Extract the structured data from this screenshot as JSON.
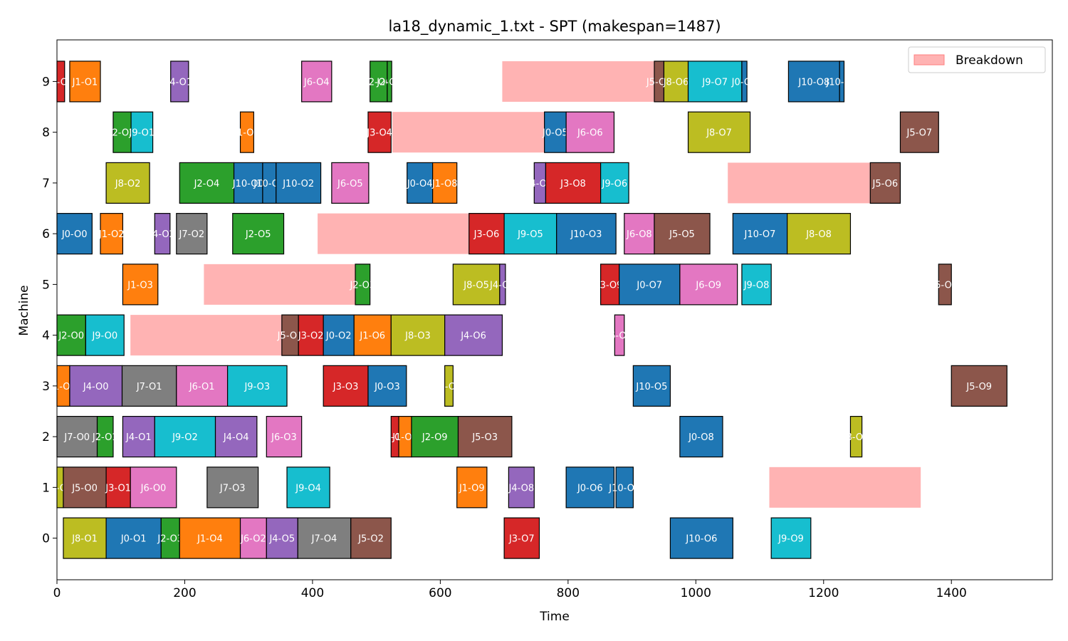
{
  "chart_data": {
    "type": "gantt",
    "title": "la18_dynamic_1.txt - SPT (makespan=1487)",
    "xlabel": "Time",
    "ylabel": "Machine",
    "xlim": [
      0,
      1558
    ],
    "xticks": [
      0,
      200,
      400,
      600,
      800,
      1000,
      1200,
      1400
    ],
    "ylim": [
      -0.82,
      9.82
    ],
    "yticks": [
      0,
      1,
      2,
      3,
      4,
      5,
      6,
      7,
      8,
      9
    ],
    "grid": false,
    "legend": {
      "position": "upper right",
      "entries": [
        {
          "label": "Breakdown",
          "color": "#ffb3b3"
        }
      ]
    },
    "job_colors": {
      "J0": "#1f77b4",
      "J1": "#ff7f0e",
      "J2": "#2ca02c",
      "J3": "#d62728",
      "J4": "#9467bd",
      "J5": "#8c564b",
      "J6": "#e377c2",
      "J7": "#7f7f7f",
      "J8": "#bcbd22",
      "J9": "#17becf",
      "J10": "#1f77b4"
    },
    "breakdowns": [
      {
        "machine": 9,
        "start": 697,
        "end": 935
      },
      {
        "machine": 8,
        "start": 525,
        "end": 763
      },
      {
        "machine": 7,
        "start": 1050,
        "end": 1273
      },
      {
        "machine": 6,
        "start": 408,
        "end": 645
      },
      {
        "machine": 5,
        "start": 230,
        "end": 467
      },
      {
        "machine": 4,
        "start": 115,
        "end": 352
      },
      {
        "machine": 1,
        "start": 1115,
        "end": 1352
      }
    ],
    "operations": [
      {
        "machine": 9,
        "job": "J3",
        "label": "J3-O0",
        "start": 0,
        "end": 12
      },
      {
        "machine": 9,
        "job": "J1",
        "label": "J1-O1",
        "start": 20,
        "end": 68
      },
      {
        "machine": 9,
        "job": "J4",
        "label": "J4-O1",
        "start": 178,
        "end": 206
      },
      {
        "machine": 9,
        "job": "J6",
        "label": "J6-O4",
        "start": 383,
        "end": 430
      },
      {
        "machine": 9,
        "job": "J2",
        "label": "J2-O6",
        "start": 490,
        "end": 517
      },
      {
        "machine": 9,
        "job": "J2",
        "label": "J2-O7",
        "start": 517,
        "end": 524
      },
      {
        "machine": 9,
        "job": "J5",
        "label": "J5-O8",
        "start": 935,
        "end": 950
      },
      {
        "machine": 9,
        "job": "J8",
        "label": "J8-O6",
        "start": 950,
        "end": 988
      },
      {
        "machine": 9,
        "job": "J9",
        "label": "J9-O7",
        "start": 988,
        "end": 1072
      },
      {
        "machine": 9,
        "job": "J0",
        "label": "J0-O9",
        "start": 1072,
        "end": 1080
      },
      {
        "machine": 9,
        "job": "J10",
        "label": "J10-O8",
        "start": 1145,
        "end": 1225
      },
      {
        "machine": 9,
        "job": "J10",
        "label": "J10-O9",
        "start": 1225,
        "end": 1232
      },
      {
        "machine": 8,
        "job": "J2",
        "label": "J2-O2",
        "start": 88,
        "end": 116
      },
      {
        "machine": 8,
        "job": "J9",
        "label": "J9-O1",
        "start": 116,
        "end": 150
      },
      {
        "machine": 8,
        "job": "J1",
        "label": "J1-O5",
        "start": 287,
        "end": 308
      },
      {
        "machine": 8,
        "job": "J3",
        "label": "J3-O4",
        "start": 487,
        "end": 523
      },
      {
        "machine": 8,
        "job": "J0",
        "label": "J0-O5",
        "start": 763,
        "end": 797
      },
      {
        "machine": 8,
        "job": "J6",
        "label": "J6-O6",
        "start": 797,
        "end": 872
      },
      {
        "machine": 8,
        "job": "J8",
        "label": "J8-O7",
        "start": 988,
        "end": 1085
      },
      {
        "machine": 8,
        "job": "J5",
        "label": "J5-O7",
        "start": 1320,
        "end": 1380
      },
      {
        "machine": 7,
        "job": "J8",
        "label": "J8-O2",
        "start": 77,
        "end": 145
      },
      {
        "machine": 7,
        "job": "J2",
        "label": "J2-O4",
        "start": 192,
        "end": 277
      },
      {
        "machine": 7,
        "job": "J10",
        "label": "J10-O0",
        "start": 277,
        "end": 322
      },
      {
        "machine": 7,
        "job": "J10",
        "label": "J10-O1",
        "start": 322,
        "end": 343
      },
      {
        "machine": 7,
        "job": "J10",
        "label": "J10-O2",
        "start": 343,
        "end": 413
      },
      {
        "machine": 7,
        "job": "J6",
        "label": "J6-O5",
        "start": 430,
        "end": 488
      },
      {
        "machine": 7,
        "job": "J0",
        "label": "J0-O4",
        "start": 548,
        "end": 588
      },
      {
        "machine": 7,
        "job": "J1",
        "label": "J1-O8",
        "start": 588,
        "end": 626
      },
      {
        "machine": 7,
        "job": "J4",
        "label": "J4-O9",
        "start": 747,
        "end": 765
      },
      {
        "machine": 7,
        "job": "J3",
        "label": "J3-O8",
        "start": 765,
        "end": 851
      },
      {
        "machine": 7,
        "job": "J9",
        "label": "J9-O6",
        "start": 851,
        "end": 895
      },
      {
        "machine": 7,
        "job": "J5",
        "label": "J5-O6",
        "start": 1273,
        "end": 1320
      },
      {
        "machine": 6,
        "job": "J0",
        "label": "J0-O0",
        "start": 0,
        "end": 55
      },
      {
        "machine": 6,
        "job": "J1",
        "label": "J1-O2",
        "start": 68,
        "end": 103
      },
      {
        "machine": 6,
        "job": "J4",
        "label": "J4-O2",
        "start": 153,
        "end": 177
      },
      {
        "machine": 6,
        "job": "J7",
        "label": "J7-O2",
        "start": 187,
        "end": 235
      },
      {
        "machine": 6,
        "job": "J2",
        "label": "J2-O5",
        "start": 275,
        "end": 355
      },
      {
        "machine": 6,
        "job": "J3",
        "label": "J3-O6",
        "start": 645,
        "end": 700
      },
      {
        "machine": 6,
        "job": "J9",
        "label": "J9-O5",
        "start": 700,
        "end": 782
      },
      {
        "machine": 6,
        "job": "J10",
        "label": "J10-O3",
        "start": 782,
        "end": 875
      },
      {
        "machine": 6,
        "job": "J6",
        "label": "J6-O8",
        "start": 888,
        "end": 935
      },
      {
        "machine": 6,
        "job": "J5",
        "label": "J5-O5",
        "start": 935,
        "end": 1022
      },
      {
        "machine": 6,
        "job": "J10",
        "label": "J10-O7",
        "start": 1058,
        "end": 1143
      },
      {
        "machine": 6,
        "job": "J8",
        "label": "J8-O8",
        "start": 1143,
        "end": 1242
      },
      {
        "machine": 5,
        "job": "J1",
        "label": "J1-O3",
        "start": 103,
        "end": 158
      },
      {
        "machine": 5,
        "job": "J2",
        "label": "J2-O3",
        "start": 467,
        "end": 490
      },
      {
        "machine": 5,
        "job": "J8",
        "label": "J8-O5",
        "start": 620,
        "end": 693
      },
      {
        "machine": 5,
        "job": "J4",
        "label": "J4-O7",
        "start": 693,
        "end": 702
      },
      {
        "machine": 5,
        "job": "J3",
        "label": "J3-O9",
        "start": 851,
        "end": 880
      },
      {
        "machine": 5,
        "job": "J0",
        "label": "J0-O7",
        "start": 880,
        "end": 975
      },
      {
        "machine": 5,
        "job": "J6",
        "label": "J6-O9",
        "start": 975,
        "end": 1065
      },
      {
        "machine": 5,
        "job": "J9",
        "label": "J9-O8",
        "start": 1072,
        "end": 1118
      },
      {
        "machine": 5,
        "job": "J5",
        "label": "J5-O8",
        "start": 1380,
        "end": 1400
      },
      {
        "machine": 4,
        "job": "J2",
        "label": "J2-O0",
        "start": 0,
        "end": 45
      },
      {
        "machine": 4,
        "job": "J9",
        "label": "J9-O0",
        "start": 45,
        "end": 105
      },
      {
        "machine": 4,
        "job": "J5",
        "label": "J5-O1",
        "start": 352,
        "end": 378
      },
      {
        "machine": 4,
        "job": "J3",
        "label": "J3-O2",
        "start": 378,
        "end": 417
      },
      {
        "machine": 4,
        "job": "J0",
        "label": "J0-O2",
        "start": 417,
        "end": 465
      },
      {
        "machine": 4,
        "job": "J1",
        "label": "J1-O6",
        "start": 465,
        "end": 523
      },
      {
        "machine": 4,
        "job": "J8",
        "label": "J8-O3",
        "start": 523,
        "end": 607
      },
      {
        "machine": 4,
        "job": "J4",
        "label": "J4-O6",
        "start": 607,
        "end": 697
      },
      {
        "machine": 4,
        "job": "J6",
        "label": "J6-O7",
        "start": 873,
        "end": 888
      },
      {
        "machine": 3,
        "job": "J1",
        "label": "J1-O0",
        "start": 0,
        "end": 20
      },
      {
        "machine": 3,
        "job": "J4",
        "label": "J4-O0",
        "start": 20,
        "end": 102
      },
      {
        "machine": 3,
        "job": "J7",
        "label": "J7-O1",
        "start": 102,
        "end": 187
      },
      {
        "machine": 3,
        "job": "J6",
        "label": "J6-O1",
        "start": 187,
        "end": 267
      },
      {
        "machine": 3,
        "job": "J9",
        "label": "J9-O3",
        "start": 267,
        "end": 360
      },
      {
        "machine": 3,
        "job": "J3",
        "label": "J3-O3",
        "start": 417,
        "end": 487
      },
      {
        "machine": 3,
        "job": "J0",
        "label": "J0-O3",
        "start": 487,
        "end": 547
      },
      {
        "machine": 3,
        "job": "J8",
        "label": "J8-O4",
        "start": 607,
        "end": 620
      },
      {
        "machine": 3,
        "job": "J10",
        "label": "J10-O5",
        "start": 902,
        "end": 960
      },
      {
        "machine": 3,
        "job": "J5",
        "label": "J5-O9",
        "start": 1400,
        "end": 1487
      },
      {
        "machine": 2,
        "job": "J7",
        "label": "J7-O0",
        "start": 0,
        "end": 63
      },
      {
        "machine": 2,
        "job": "J2",
        "label": "J2-O1",
        "start": 63,
        "end": 88
      },
      {
        "machine": 2,
        "job": "J4",
        "label": "J4-O1",
        "start": 103,
        "end": 153
      },
      {
        "machine": 2,
        "job": "J9",
        "label": "J9-O2",
        "start": 153,
        "end": 248
      },
      {
        "machine": 2,
        "job": "J4",
        "label": "J4-O4",
        "start": 248,
        "end": 313
      },
      {
        "machine": 2,
        "job": "J6",
        "label": "J6-O3",
        "start": 328,
        "end": 383
      },
      {
        "machine": 2,
        "job": "J3",
        "label": "J3-O5",
        "start": 523,
        "end": 535
      },
      {
        "machine": 2,
        "job": "J1",
        "label": "J1-O7",
        "start": 535,
        "end": 555
      },
      {
        "machine": 2,
        "job": "J2",
        "label": "J2-O9",
        "start": 555,
        "end": 628
      },
      {
        "machine": 2,
        "job": "J5",
        "label": "J5-O3",
        "start": 628,
        "end": 712
      },
      {
        "machine": 2,
        "job": "J0",
        "label": "J0-O8",
        "start": 975,
        "end": 1042
      },
      {
        "machine": 2,
        "job": "J8",
        "label": "J8-O9",
        "start": 1242,
        "end": 1260
      },
      {
        "machine": 1,
        "job": "J8",
        "label": "J8-O0",
        "start": 0,
        "end": 10
      },
      {
        "machine": 1,
        "job": "J5",
        "label": "J5-O0",
        "start": 10,
        "end": 77
      },
      {
        "machine": 1,
        "job": "J3",
        "label": "J3-O1",
        "start": 77,
        "end": 115
      },
      {
        "machine": 1,
        "job": "J6",
        "label": "J6-O0",
        "start": 115,
        "end": 187
      },
      {
        "machine": 1,
        "job": "J7",
        "label": "J7-O3",
        "start": 235,
        "end": 315
      },
      {
        "machine": 1,
        "job": "J9",
        "label": "J9-O4",
        "start": 360,
        "end": 427
      },
      {
        "machine": 1,
        "job": "J1",
        "label": "J1-O9",
        "start": 626,
        "end": 673
      },
      {
        "machine": 1,
        "job": "J4",
        "label": "J4-O8",
        "start": 707,
        "end": 747
      },
      {
        "machine": 1,
        "job": "J0",
        "label": "J0-O6",
        "start": 797,
        "end": 872
      },
      {
        "machine": 1,
        "job": "J10",
        "label": "J10-O4",
        "start": 875,
        "end": 902
      },
      {
        "machine": 0,
        "job": "J8",
        "label": "J8-O1",
        "start": 10,
        "end": 77
      },
      {
        "machine": 0,
        "job": "J0",
        "label": "J0-O1",
        "start": 77,
        "end": 163
      },
      {
        "machine": 0,
        "job": "J2",
        "label": "J2-O3",
        "start": 163,
        "end": 192
      },
      {
        "machine": 0,
        "job": "J1",
        "label": "J1-O4",
        "start": 192,
        "end": 287
      },
      {
        "machine": 0,
        "job": "J6",
        "label": "J6-O2",
        "start": 287,
        "end": 328
      },
      {
        "machine": 0,
        "job": "J4",
        "label": "J4-O5",
        "start": 328,
        "end": 377
      },
      {
        "machine": 0,
        "job": "J7",
        "label": "J7-O4",
        "start": 377,
        "end": 460
      },
      {
        "machine": 0,
        "job": "J5",
        "label": "J5-O2",
        "start": 460,
        "end": 523
      },
      {
        "machine": 0,
        "job": "J3",
        "label": "J3-O7",
        "start": 700,
        "end": 755
      },
      {
        "machine": 0,
        "job": "J10",
        "label": "J10-O6",
        "start": 960,
        "end": 1058
      },
      {
        "machine": 0,
        "job": "J9",
        "label": "J9-O9",
        "start": 1118,
        "end": 1180
      }
    ]
  }
}
